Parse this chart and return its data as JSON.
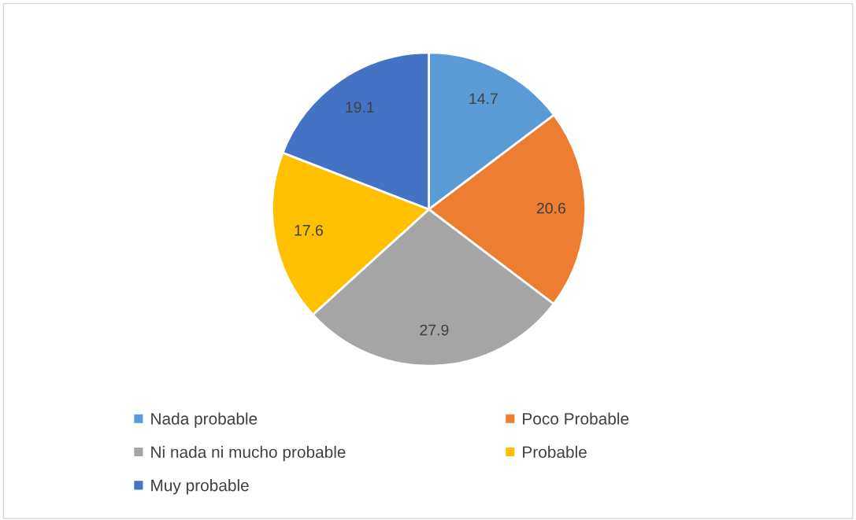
{
  "chart_data": {
    "type": "pie",
    "categories": [
      "Nada probable",
      "Poco Probable",
      "Ni nada ni mucho probable",
      "Probable",
      "Muy probable"
    ],
    "values": [
      14.7,
      20.6,
      27.9,
      17.6,
      19.1
    ],
    "colors": [
      "#5b9bd5",
      "#ed7d31",
      "#a5a5a5",
      "#ffc000",
      "#4472c4"
    ],
    "data_labels": true,
    "legend": "bottom"
  }
}
